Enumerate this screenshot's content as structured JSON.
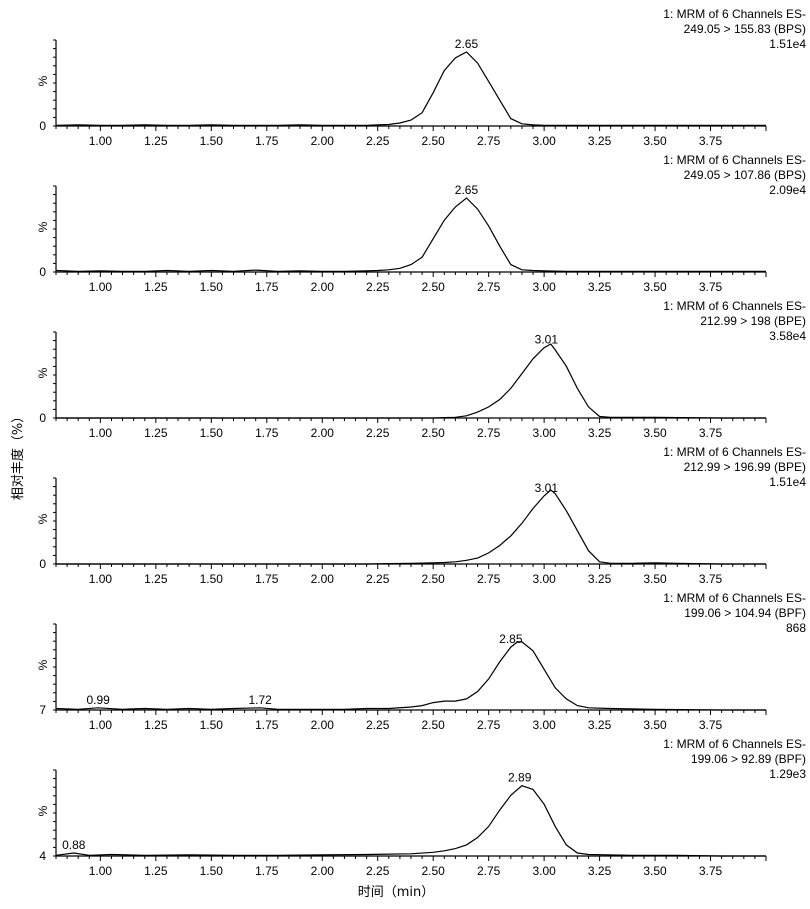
{
  "page": {
    "ylabel": "相对丰度（%）",
    "xlabel": "时间（min）"
  },
  "chart_data": [
    {
      "type": "line",
      "header": [
        "1: MRM of 6 Channels ES-",
        "249.05 > 155.83 (BPS)",
        "1.51e4"
      ],
      "y_axis_symbol": "%",
      "y_min_label": "0",
      "xlim": [
        0.8,
        4.0
      ],
      "x_ticks": [
        "1.00",
        "1.25",
        "1.50",
        "1.75",
        "2.00",
        "2.25",
        "2.50",
        "2.75",
        "3.00",
        "3.25",
        "3.50",
        "3.75"
      ],
      "peak_labels": [
        {
          "x": 2.65,
          "text": "2.65"
        }
      ],
      "x": [
        0.8,
        0.9,
        1.0,
        1.1,
        1.2,
        1.3,
        1.4,
        1.5,
        1.6,
        1.7,
        1.8,
        1.9,
        2.0,
        2.1,
        2.2,
        2.25,
        2.3,
        2.35,
        2.4,
        2.45,
        2.5,
        2.55,
        2.6,
        2.65,
        2.7,
        2.75,
        2.8,
        2.85,
        2.9,
        2.95,
        3.0,
        3.1,
        3.2,
        3.4,
        3.6,
        3.8,
        4.0
      ],
      "y": [
        1,
        1.5,
        1,
        1,
        1.5,
        1,
        1,
        1.5,
        1,
        1,
        1,
        1.5,
        1,
        1,
        1,
        1.5,
        2,
        4,
        8,
        18,
        45,
        75,
        92,
        100,
        85,
        60,
        35,
        10,
        3,
        1.5,
        1,
        1,
        1,
        1,
        1,
        1,
        1
      ]
    },
    {
      "type": "line",
      "header": [
        "1: MRM of 6 Channels ES-",
        "249.05 > 107.86 (BPS)",
        "2.09e4"
      ],
      "y_axis_symbol": "%",
      "y_min_label": "0",
      "xlim": [
        0.8,
        4.0
      ],
      "x_ticks": [
        "1.00",
        "1.25",
        "1.50",
        "1.75",
        "2.00",
        "2.25",
        "2.50",
        "2.75",
        "3.00",
        "3.25",
        "3.50",
        "3.75"
      ],
      "peak_labels": [
        {
          "x": 2.65,
          "text": "2.65"
        }
      ],
      "x": [
        0.8,
        0.9,
        1.0,
        1.1,
        1.2,
        1.3,
        1.4,
        1.5,
        1.6,
        1.7,
        1.8,
        1.9,
        2.0,
        2.1,
        2.2,
        2.25,
        2.3,
        2.35,
        2.4,
        2.45,
        2.5,
        2.55,
        2.6,
        2.65,
        2.7,
        2.75,
        2.8,
        2.85,
        2.9,
        2.95,
        3.0,
        3.1,
        3.2,
        3.4,
        3.6,
        3.8,
        4.0
      ],
      "y": [
        2,
        1,
        1.5,
        1,
        1,
        2,
        1,
        2,
        1,
        2.5,
        1,
        1.5,
        1,
        1,
        1.5,
        2,
        3,
        5,
        10,
        20,
        45,
        70,
        88,
        100,
        85,
        62,
        35,
        10,
        3,
        2,
        1.5,
        1,
        1,
        1,
        1,
        1,
        1
      ]
    },
    {
      "type": "line",
      "header": [
        "1: MRM of 6 Channels ES-",
        "212.99 > 198 (BPE)",
        "3.58e4"
      ],
      "y_axis_symbol": "%",
      "y_min_label": "0",
      "xlim": [
        0.8,
        4.0
      ],
      "x_ticks": [
        "1.00",
        "1.25",
        "1.50",
        "1.75",
        "2.00",
        "2.25",
        "2.50",
        "2.75",
        "3.00",
        "3.25",
        "3.50",
        "3.75"
      ],
      "peak_labels": [
        {
          "x": 3.01,
          "text": "3.01"
        }
      ],
      "x": [
        0.8,
        1.0,
        1.5,
        2.0,
        2.5,
        2.55,
        2.6,
        2.65,
        2.7,
        2.75,
        2.8,
        2.85,
        2.9,
        2.95,
        3.0,
        3.03,
        3.05,
        3.1,
        3.15,
        3.2,
        3.25,
        3.3,
        3.5,
        3.8,
        4.0
      ],
      "y": [
        0,
        0,
        0,
        0,
        0,
        0.5,
        1,
        3,
        8,
        15,
        25,
        40,
        60,
        80,
        95,
        100,
        92,
        70,
        40,
        15,
        2,
        1,
        1,
        0,
        0
      ]
    },
    {
      "type": "line",
      "header": [
        "1: MRM of 6 Channels ES-",
        "212.99 > 196.99 (BPE)",
        "1.51e4"
      ],
      "y_axis_symbol": "%",
      "y_min_label": "0",
      "xlim": [
        0.8,
        4.0
      ],
      "x_ticks": [
        "1.00",
        "1.25",
        "1.50",
        "1.75",
        "2.00",
        "2.25",
        "2.50",
        "2.75",
        "3.00",
        "3.25",
        "3.50",
        "3.75"
      ],
      "peak_labels": [
        {
          "x": 3.01,
          "text": "3.01"
        }
      ],
      "x": [
        0.8,
        1.0,
        1.5,
        2.0,
        2.2,
        2.3,
        2.4,
        2.5,
        2.55,
        2.6,
        2.65,
        2.7,
        2.75,
        2.8,
        2.85,
        2.9,
        2.95,
        3.0,
        3.03,
        3.05,
        3.1,
        3.15,
        3.2,
        3.25,
        3.3,
        3.4,
        3.5,
        3.6,
        3.8,
        4.0
      ],
      "y": [
        0,
        0,
        0,
        0,
        0,
        0.5,
        1,
        1.5,
        2,
        3,
        5,
        8,
        15,
        25,
        38,
        55,
        75,
        92,
        100,
        95,
        72,
        45,
        18,
        3,
        1,
        1,
        1.5,
        1,
        0,
        0
      ]
    },
    {
      "type": "line",
      "header": [
        "1: MRM of 6 Channels ES-",
        "199.06 > 104.94 (BPF)",
        "868"
      ],
      "y_axis_symbol": "%",
      "y_min_label": "7",
      "xlim": [
        0.8,
        4.0
      ],
      "x_ticks": [
        "1.00",
        "1.25",
        "1.50",
        "1.75",
        "2.00",
        "2.25",
        "2.50",
        "2.75",
        "3.00",
        "3.25",
        "3.50",
        "3.75"
      ],
      "peak_labels": [
        {
          "x": 2.85,
          "text": "2.85"
        },
        {
          "x": 0.99,
          "text": "0.99"
        },
        {
          "x": 1.72,
          "text": "1.72"
        }
      ],
      "x": [
        0.8,
        0.9,
        0.99,
        1.1,
        1.2,
        1.3,
        1.4,
        1.5,
        1.6,
        1.72,
        1.8,
        1.9,
        2.0,
        2.1,
        2.2,
        2.3,
        2.4,
        2.45,
        2.5,
        2.55,
        2.6,
        2.65,
        2.7,
        2.75,
        2.8,
        2.85,
        2.88,
        2.9,
        2.95,
        3.0,
        3.05,
        3.1,
        3.15,
        3.2,
        3.3,
        3.5,
        3.8,
        4.0
      ],
      "y": [
        2,
        1,
        3,
        1,
        2,
        1,
        2,
        1,
        2,
        3,
        1,
        1,
        1,
        1,
        2,
        2,
        4,
        6,
        10,
        12,
        12,
        15,
        25,
        42,
        65,
        85,
        92,
        92,
        80,
        55,
        30,
        15,
        6,
        3,
        2,
        1,
        0,
        0
      ]
    },
    {
      "type": "line",
      "header": [
        "1: MRM of 6 Channels ES-",
        "199.06 > 92.89 (BPF)",
        "1.29e3"
      ],
      "y_axis_symbol": "%",
      "y_min_label": "4",
      "xlim": [
        0.8,
        4.0
      ],
      "x_ticks": [
        "1.00",
        "1.25",
        "1.50",
        "1.75",
        "2.00",
        "2.25",
        "2.50",
        "2.75",
        "3.00",
        "3.25",
        "3.50",
        "3.75"
      ],
      "peak_labels": [
        {
          "x": 2.89,
          "text": "2.89"
        },
        {
          "x": 0.88,
          "text": "0.88"
        }
      ],
      "x": [
        0.8,
        0.88,
        0.95,
        1.05,
        1.2,
        1.4,
        1.6,
        1.8,
        2.0,
        2.2,
        2.4,
        2.5,
        2.55,
        2.6,
        2.65,
        2.7,
        2.75,
        2.8,
        2.85,
        2.9,
        2.95,
        3.0,
        3.05,
        3.1,
        3.15,
        3.2,
        3.4,
        3.6,
        3.8,
        4.0
      ],
      "y": [
        1,
        4,
        1,
        2,
        1,
        1.5,
        1,
        1,
        1.5,
        2,
        3,
        5,
        7,
        10,
        15,
        25,
        40,
        62,
        82,
        95,
        90,
        70,
        40,
        15,
        4,
        2,
        1,
        1,
        0,
        0
      ]
    }
  ]
}
